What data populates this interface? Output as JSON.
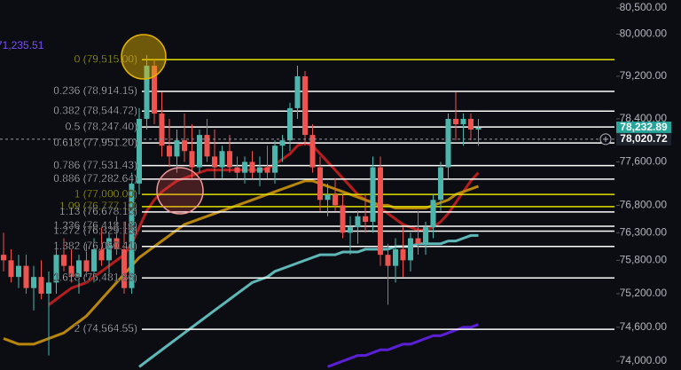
{
  "chart_data": {
    "type": "candlestick",
    "log_scale": true,
    "ylim": [
      74000,
      80500
    ],
    "yticks": [
      {
        "value": 80500,
        "label": "80,500.00"
      },
      {
        "value": 80000,
        "label": "80,000.00"
      },
      {
        "value": 79200,
        "label": "79,200.00"
      },
      {
        "value": 78400,
        "label": "78,400.00"
      },
      {
        "value": 77600,
        "label": "77,600.00"
      },
      {
        "value": 76800,
        "label": "76,800.00"
      },
      {
        "value": 76300,
        "label": "76,300.00"
      },
      {
        "value": 75800,
        "label": "75,800.00"
      },
      {
        "value": 75200,
        "label": "75,200.00"
      },
      {
        "value": 74600,
        "label": "74,600.00"
      },
      {
        "value": 74000,
        "label": "74,000.00"
      }
    ],
    "up_color": "#4db6ac",
    "down_color": "#ef5350",
    "open": [
      75900,
      75800,
      75500,
      75700,
      75300,
      75500,
      75200,
      75400,
      75900,
      75700,
      75500,
      75800,
      75600,
      76000,
      75800,
      76200,
      76000,
      75300,
      77200,
      78400,
      79400,
      78500,
      77900,
      77700,
      78000,
      77800,
      77500,
      78100,
      77700,
      77500,
      77800,
      77500,
      77400,
      77600,
      77400,
      77500,
      77400,
      77900,
      78000,
      78600,
      79200,
      78100,
      77500,
      76900,
      77000,
      76800,
      76300,
      76400,
      76600,
      76500,
      77500,
      75900,
      75700,
      76000,
      75800,
      76200,
      76100,
      76400,
      76900,
      77500,
      78400,
      78300,
      78400,
      78200
    ],
    "high": [
      76300,
      76000,
      75900,
      75900,
      75700,
      75800,
      75600,
      76000,
      76200,
      76000,
      75900,
      76100,
      76200,
      76400,
      76300,
      76600,
      76500,
      77400,
      78600,
      79600,
      79515,
      78900,
      78400,
      78200,
      78500,
      78300,
      78200,
      78400,
      78200,
      77900,
      78100,
      77700,
      77700,
      77800,
      77700,
      77900,
      78000,
      78100,
      78700,
      79400,
      79300,
      78300,
      77700,
      77200,
      77300,
      77000,
      76600,
      76700,
      77000,
      77700,
      77700,
      76100,
      76200,
      76400,
      76300,
      76700,
      76500,
      77000,
      77600,
      78500,
      78900,
      78500,
      78500,
      78400
    ],
    "low": [
      75600,
      75400,
      75300,
      75200,
      74900,
      75100,
      74100,
      75200,
      75600,
      75400,
      75200,
      75500,
      75400,
      75700,
      75500,
      75900,
      75200,
      75200,
      77000,
      78200,
      78300,
      77700,
      77500,
      77400,
      77600,
      77300,
      77400,
      77600,
      77300,
      77300,
      77400,
      77300,
      77200,
      77300,
      77150,
      77300,
      77200,
      77600,
      77800,
      78400,
      77900,
      77400,
      76700,
      76600,
      76700,
      76200,
      75900,
      76100,
      76300,
      76300,
      75700,
      75000,
      75400,
      75500,
      75600,
      75900,
      75900,
      76200,
      76700,
      77300,
      78000,
      77900,
      78000,
      77900
    ],
    "close": [
      75800,
      75500,
      75700,
      75300,
      75500,
      75200,
      75400,
      75900,
      75700,
      75500,
      75800,
      75600,
      76000,
      75800,
      76200,
      76000,
      75300,
      77200,
      78400,
      79400,
      78500,
      77900,
      77700,
      78000,
      77800,
      77500,
      78100,
      77700,
      77500,
      77800,
      77500,
      77400,
      77600,
      77400,
      77500,
      77400,
      77900,
      78000,
      78600,
      79200,
      78100,
      77500,
      76900,
      77000,
      76800,
      76300,
      76400,
      76600,
      76500,
      77500,
      75900,
      75700,
      76000,
      75800,
      76200,
      76100,
      76400,
      76900,
      77500,
      78400,
      78300,
      78400,
      78200,
      78232.89
    ],
    "moving_averages": [
      {
        "color": "#b71c1c",
        "values": [
          null,
          null,
          null,
          null,
          null,
          null,
          75000,
          75100,
          75200,
          75300,
          75350,
          75400,
          75500,
          75600,
          75700,
          75800,
          75900,
          76100,
          76400,
          76700,
          76900,
          77050,
          77150,
          77250,
          77300,
          77350,
          77400,
          77450,
          77450,
          77450,
          77450,
          77450,
          77450,
          77450,
          77450,
          77480,
          77550,
          77650,
          77750,
          77900,
          77950,
          77900,
          77750,
          77600,
          77450,
          77300,
          77150,
          77000,
          76900,
          76850,
          76750,
          76650,
          76550,
          76450,
          76400,
          76350,
          76350,
          76400,
          76500,
          76650,
          76850,
          77050,
          77250,
          77400
        ]
      },
      {
        "color": "#b8860b",
        "values": [
          74400,
          74350,
          74300,
          74300,
          74300,
          74350,
          74400,
          74450,
          74500,
          74600,
          74700,
          74800,
          74950,
          75100,
          75250,
          75400,
          75550,
          75700,
          75850,
          75950,
          76050,
          76150,
          76250,
          76350,
          76450,
          76500,
          76550,
          76600,
          76650,
          76700,
          76750,
          76800,
          76850,
          76900,
          76950,
          77000,
          77050,
          77100,
          77150,
          77200,
          77250,
          77250,
          77200,
          77150,
          77100,
          77050,
          77000,
          76950,
          76900,
          76850,
          76800,
          76800,
          76750,
          76750,
          76750,
          76750,
          76750,
          76800,
          76850,
          76900,
          77000,
          77050,
          77100,
          77150
        ]
      },
      {
        "color": "#5fb8b8",
        "values": [
          null,
          null,
          null,
          null,
          null,
          null,
          null,
          null,
          null,
          null,
          null,
          null,
          null,
          null,
          null,
          null,
          null,
          null,
          73900,
          74000,
          74100,
          74200,
          74300,
          74400,
          74500,
          74600,
          74700,
          74800,
          74900,
          75000,
          75100,
          75200,
          75300,
          75400,
          75450,
          75500,
          75600,
          75650,
          75700,
          75750,
          75800,
          75850,
          75900,
          75900,
          75900,
          75950,
          75950,
          75950,
          76000,
          76000,
          76000,
          76000,
          76050,
          76050,
          76050,
          76100,
          76100,
          76100,
          76100,
          76150,
          76150,
          76200,
          76250,
          76250
        ]
      },
      {
        "color": "#5b1fd6",
        "values": [
          null,
          null,
          null,
          null,
          null,
          null,
          null,
          null,
          null,
          null,
          null,
          null,
          null,
          null,
          null,
          null,
          null,
          null,
          null,
          null,
          null,
          null,
          null,
          null,
          null,
          null,
          null,
          null,
          null,
          null,
          null,
          null,
          null,
          null,
          null,
          null,
          null,
          null,
          null,
          null,
          null,
          null,
          null,
          73900,
          73950,
          74000,
          74050,
          74100,
          74100,
          74150,
          74200,
          74200,
          74250,
          74300,
          74300,
          74350,
          74400,
          74450,
          74450,
          74500,
          74550,
          74600,
          74600,
          74650
        ]
      }
    ],
    "fib_levels": [
      {
        "label": "0 (79,515.00)",
        "price": 79515,
        "color": "#e0e000"
      },
      {
        "label": "0.236 (78,914.15)",
        "price": 78914.15,
        "color": "#ffffff"
      },
      {
        "label": "0.382 (78,544.72)",
        "price": 78544.72,
        "color": "#ffffff"
      },
      {
        "label": "0.5 (78,247.40)",
        "price": 78247.4,
        "color": "#ffffff"
      },
      {
        "label": "0.618 (77,951.20)",
        "price": 77951.2,
        "color": "#ffffff"
      },
      {
        "label": "0.786 (77,531.43)",
        "price": 77531.43,
        "color": "#ffffff"
      },
      {
        "label": "0.886 (77,282.64)",
        "price": 77282.64,
        "color": "#ffffff"
      },
      {
        "label": "1 (77,000.00)",
        "price": 77000,
        "color": "#e0e000"
      },
      {
        "label": "1.09 (76,777.10)",
        "price": 76777.1,
        "color": "#e0e000"
      },
      {
        "label": "1.13 (76,678.15)",
        "price": 76678.15,
        "color": "#ffffff"
      },
      {
        "label": "1.236 (76,418.16)",
        "price": 76418.16,
        "color": "#ffffff"
      },
      {
        "label": "1.272 (76,329.15)",
        "price": 76329.15,
        "color": "#ffffff"
      },
      {
        "label": "1.382 (76,050.41)",
        "price": 76050.41,
        "color": "#ffffff"
      },
      {
        "label": "1.618 (75,481.66)",
        "price": 75481.66,
        "color": "#ffffff"
      },
      {
        "label": "2 (74,564.55)",
        "price": 74564.55,
        "color": "#ffffff"
      }
    ],
    "price_labels": [
      {
        "label": "78,232.89",
        "value": 78232.89,
        "color": "#26a69a"
      },
      {
        "label": "78,020.72",
        "value": 78020.72,
        "color": "#1e222d"
      }
    ],
    "left_label": "71,235.51"
  }
}
